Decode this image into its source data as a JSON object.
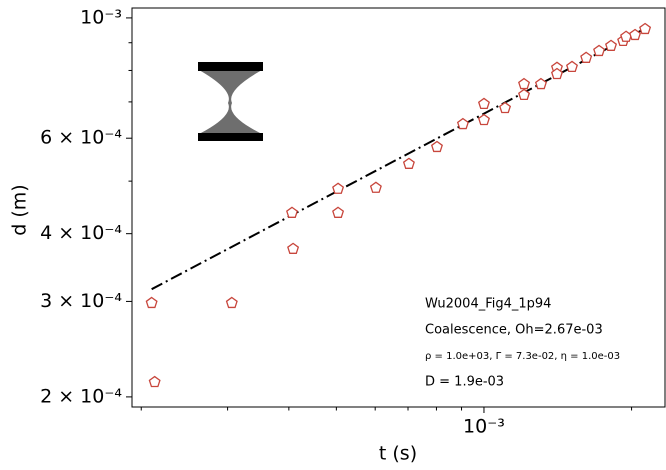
{
  "chart_data": {
    "type": "scatter",
    "xlabel": "t (s)",
    "ylabel": "d (m)",
    "xscale": "log",
    "yscale": "log",
    "xlim": [
      0.0001915,
      0.00234
    ],
    "ylim": [
      0.0001916,
      0.001043
    ],
    "xticks": [
      {
        "value": 0.001,
        "label": "10⁻³"
      }
    ],
    "xminorticks": [
      0.0002,
      0.0003,
      0.0004,
      0.0005,
      0.0006,
      0.0007,
      0.0008,
      0.0009,
      0.002
    ],
    "yticks": [
      {
        "value": 0.0002,
        "label": "2 × 10⁻⁴"
      },
      {
        "value": 0.0003,
        "label": "3 × 10⁻⁴"
      },
      {
        "value": 0.0004,
        "label": "4 × 10⁻⁴"
      },
      {
        "value": 0.0006,
        "label": "6 × 10⁻⁴"
      },
      {
        "value": 0.001,
        "label": "10⁻³"
      }
    ],
    "yminorticks": [
      0.0005,
      0.0007,
      0.0008,
      0.0009
    ],
    "points": {
      "color": "#c8463c",
      "x": [
        0.00021,
        0.000213,
        0.000306,
        0.000406,
        0.000408,
        0.000504,
        0.000504,
        0.000602,
        0.000703,
        0.000802,
        0.000906,
        0.001,
        0.001,
        0.001104,
        0.001207,
        0.001207,
        0.001307,
        0.001409,
        0.001409,
        0.001512,
        0.001616,
        0.001717,
        0.001816,
        0.001922,
        0.001949,
        0.002033,
        0.002131
      ],
      "y": [
        0.000298,
        0.000213,
        0.000298,
        0.000437,
        0.000375,
        0.000484,
        0.000437,
        0.000486,
        0.000538,
        0.000578,
        0.000637,
        0.000694,
        0.000648,
        0.000682,
        0.000755,
        0.000721,
        0.000755,
        0.000809,
        0.000788,
        0.000812,
        0.000844,
        0.000869,
        0.000888,
        0.000907,
        0.000923,
        0.00093,
        0.000954
      ]
    },
    "fit": {
      "color": "#000000",
      "x": [
        0.00021,
        0.00216
      ],
      "y": [
        0.000316,
        0.000962
      ]
    },
    "annotations": [
      "Wu2004_Fig4_1p94",
      "Coalescence, Oh=2.67e-03",
      "ρ = 1.0e+03, Γ = 7.3e-02, η = 1.0e-03",
      "D = 1.9e-03"
    ]
  }
}
